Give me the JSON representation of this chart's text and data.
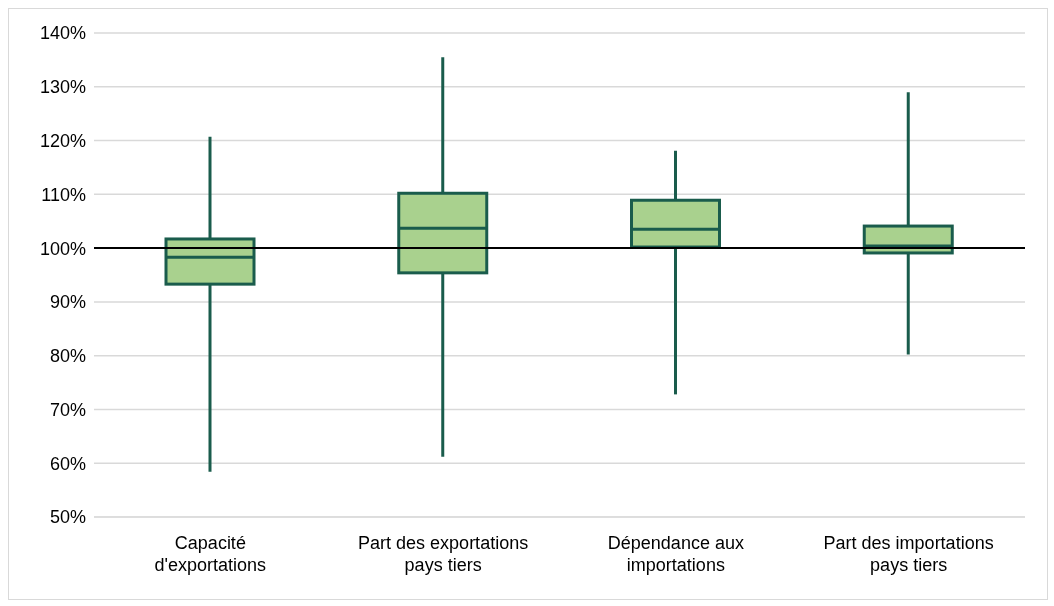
{
  "chart_data": {
    "type": "box",
    "categories": [
      "Capacité d'exportations",
      "Part des exportations pays tiers",
      "Dépendance aux importations",
      "Part des importations pays tiers"
    ],
    "boxes": [
      {
        "low": 58.4,
        "q1": 93.3,
        "median": 98.3,
        "q3": 101.7,
        "high": 120.7
      },
      {
        "low": 61.2,
        "q1": 95.4,
        "median": 103.7,
        "q3": 110.2,
        "high": 135.5
      },
      {
        "low": 72.8,
        "q1": 100.2,
        "median": 103.5,
        "q3": 108.9,
        "high": 118.1
      },
      {
        "low": 80.2,
        "q1": 99.1,
        "median": 100.4,
        "q3": 104.1,
        "high": 129
      }
    ],
    "color": "#a9d18e",
    "ylim": [
      50,
      140
    ],
    "yticks": [
      {
        "value": 50,
        "label": "50%"
      },
      {
        "value": 60,
        "label": "60%"
      },
      {
        "value": 70,
        "label": "70%"
      },
      {
        "value": 80,
        "label": "80%"
      },
      {
        "value": 90,
        "label": "90%"
      },
      {
        "value": 100,
        "label": "100%"
      },
      {
        "value": 110,
        "label": "110%"
      },
      {
        "value": 120,
        "label": "120%"
      },
      {
        "value": 130,
        "label": "130%"
      },
      {
        "value": 140,
        "label": "140%"
      }
    ],
    "grid": "y",
    "ref_lines": [
      {
        "axis": "y",
        "value": 100,
        "color": "#000000"
      }
    ]
  }
}
